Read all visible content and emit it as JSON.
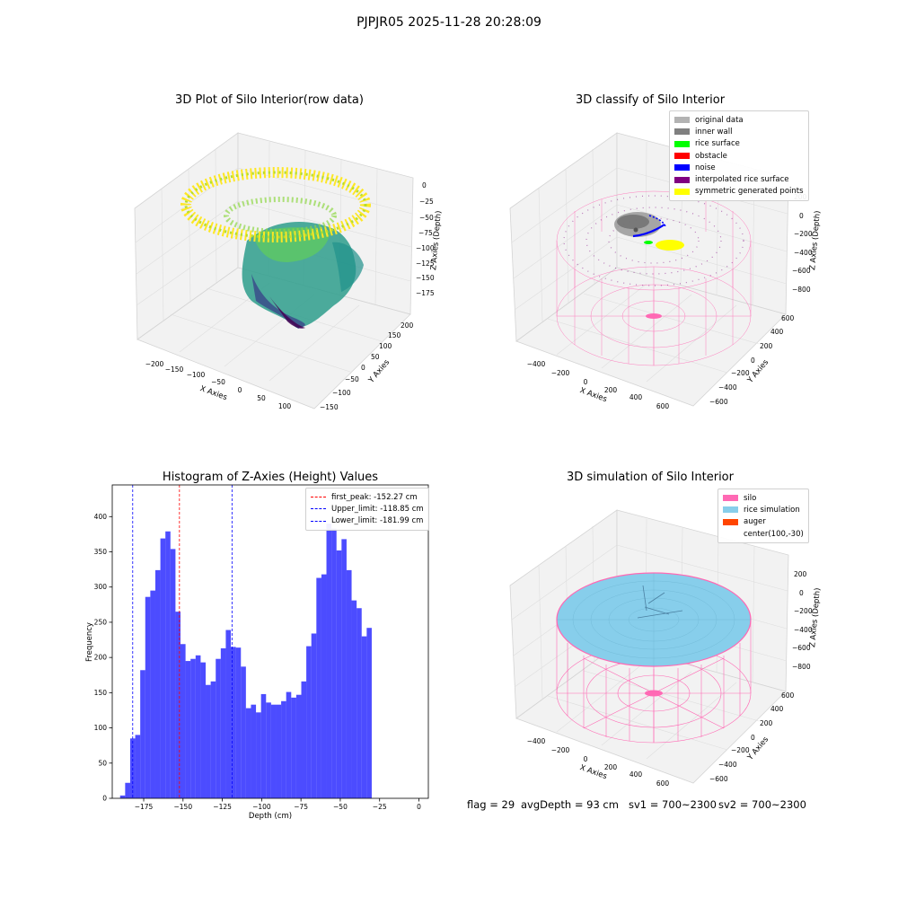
{
  "suptitle": "PJPJR05 2025-11-28 20:28:09",
  "panels": {
    "raw": {
      "title": "3D Plot of Silo Interior(row data)",
      "x_ticks": [
        "−200",
        "−150",
        "−100",
        "−50",
        "0",
        "50",
        "100"
      ],
      "y_ticks": [
        "−150",
        "−100",
        "−50",
        "0",
        "50",
        "100",
        "150",
        "200"
      ],
      "z_ticks": [
        "0",
        "−25",
        "−50",
        "−75",
        "−100",
        "−125",
        "−150",
        "−175"
      ],
      "xlabel": "X Axies",
      "ylabel": "Y Axies",
      "zlabel": "Z Axies (Depth)"
    },
    "classify": {
      "title": "3D classify of Silo Interior",
      "x_ticks": [
        "−400",
        "−200",
        "0",
        "200",
        "400",
        "600"
      ],
      "y_ticks": [
        "−600",
        "−400",
        "−200",
        "0",
        "200",
        "400",
        "600"
      ],
      "z_ticks": [
        "200",
        "0",
        "−200",
        "−400",
        "−600",
        "−800"
      ],
      "xlabel": "X Axies",
      "ylabel": "Y Axies",
      "zlabel": "Z Axies (Depth)",
      "legend": [
        {
          "label": "original data",
          "color": "#b3b3b3"
        },
        {
          "label": "inner wall",
          "color": "#808080"
        },
        {
          "label": "rice surface",
          "color": "#00ff00"
        },
        {
          "label": "obstacle",
          "color": "#ff0000"
        },
        {
          "label": "noise",
          "color": "#0000ff"
        },
        {
          "label": "interpolated rice surface",
          "color": "#800080"
        },
        {
          "label": "symmetric generated points",
          "color": "#ffff00"
        }
      ]
    },
    "simulation": {
      "title": "3D simulation of Silo Interior",
      "x_ticks": [
        "−400",
        "−200",
        "0",
        "200",
        "400",
        "600"
      ],
      "y_ticks": [
        "−600",
        "−400",
        "−200",
        "0",
        "200",
        "400",
        "600"
      ],
      "z_ticks": [
        "200",
        "0",
        "−200",
        "−400",
        "−600",
        "−800"
      ],
      "xlabel": "X Axies",
      "ylabel": "Y Axies",
      "zlabel": "Z Axies (Depth)",
      "legend": [
        {
          "label": "silo",
          "color": "#ff69b4"
        },
        {
          "label": "rice simulation",
          "color": "#87ceeb"
        },
        {
          "label": "auger",
          "color": "#ff4500"
        },
        {
          "label": "center(100,-30)",
          "color": ""
        }
      ]
    }
  },
  "footer": {
    "flag": "flag = 29",
    "avg": "avgDepth = 93 cm",
    "sv1": "sv1 = 700~2300",
    "sv2": "sv2 = 700~2300"
  },
  "chart_data": [
    {
      "type": "bar",
      "title": "Histogram of Z-Axies (Height) Values",
      "xlabel": "Depth (cm)",
      "ylabel": "Frequency",
      "bin_start": -190,
      "bin_width": 3.2,
      "values": [
        4,
        22,
        85,
        90,
        182,
        286,
        295,
        324,
        369,
        379,
        354,
        265,
        219,
        195,
        198,
        203,
        193,
        161,
        166,
        198,
        213,
        239,
        215,
        214,
        187,
        128,
        133,
        122,
        148,
        136,
        133,
        133,
        138,
        151,
        143,
        147,
        166,
        216,
        234,
        313,
        318,
        390,
        383,
        352,
        368,
        324,
        281,
        270,
        230,
        242
      ],
      "color": "#0000ff",
      "xlim": [
        -195,
        6
      ],
      "ylim": [
        0,
        445
      ],
      "x_ticks": [
        -175,
        -150,
        -125,
        -100,
        -75,
        -50,
        -25,
        0
      ],
      "x_tick_labels": [
        "−175",
        "−150",
        "−125",
        "−100",
        "−75",
        "−50",
        "−25",
        "0"
      ],
      "y_ticks": [
        0,
        50,
        100,
        150,
        200,
        250,
        300,
        350,
        400
      ],
      "y_tick_labels": [
        "0",
        "50",
        "100",
        "150",
        "200",
        "250",
        "300",
        "350",
        "400"
      ],
      "vlines": [
        {
          "x": -152.27,
          "label": "first_peak: -152.27 cm",
          "color": "#ff0000"
        },
        {
          "x": -118.85,
          "label": "Upper_limit: -118.85 cm",
          "color": "#0000ff"
        },
        {
          "x": -181.99,
          "label": "Lower_limit: -181.99 cm",
          "color": "#0000ff"
        }
      ],
      "legend_position": "top-right"
    }
  ]
}
